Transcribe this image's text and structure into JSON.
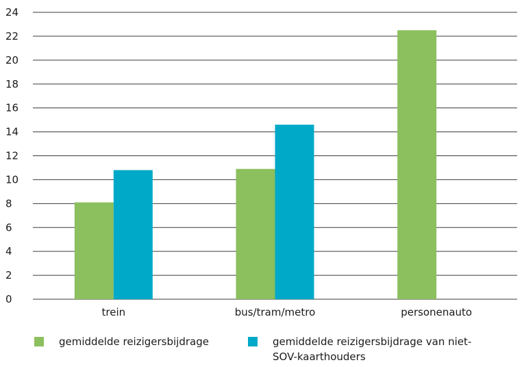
{
  "chart_data": {
    "type": "bar",
    "title": "",
    "xlabel": "",
    "ylabel": "",
    "categories": [
      "trein",
      "bus/tram/metro",
      "personenauto"
    ],
    "series": [
      {
        "name": "gemiddelde reizigersbijdrage",
        "values": [
          8.1,
          10.9,
          22.5
        ],
        "color": "#8cbf5e"
      },
      {
        "name": "gemiddelde reizigersbijdrage van niet-SOV-kaarthouders",
        "values": [
          10.8,
          14.6,
          null
        ],
        "color": "#00a9c8"
      }
    ],
    "ylim": [
      0,
      24
    ],
    "yticks": [
      "0",
      "2",
      "4",
      "6",
      "8",
      "10",
      "12",
      "14",
      "16",
      "18",
      "20",
      "22",
      "24"
    ],
    "grid": true,
    "legend_position": "bottom"
  }
}
